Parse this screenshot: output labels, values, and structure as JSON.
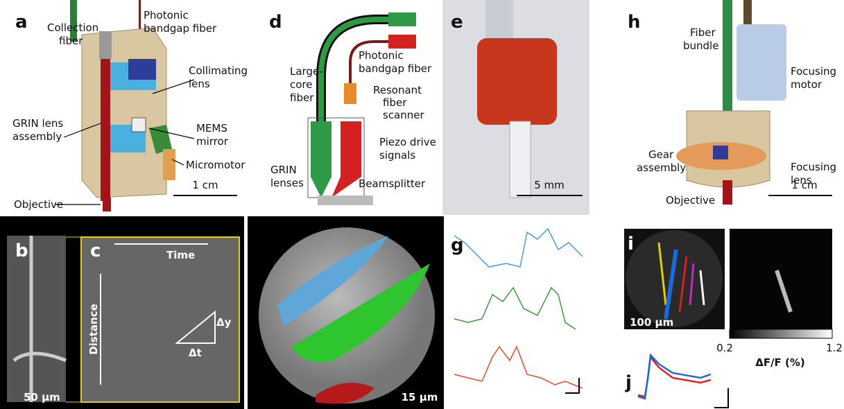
{
  "panel_a": {
    "letter": "a",
    "collection_fiber": [
      "Collection",
      "fiber"
    ],
    "photonic_fiber": [
      "Photonic",
      "bandgap fiber"
    ],
    "collimating_lens": [
      "Collimating",
      "lens"
    ],
    "grin_assembly": [
      "GRIN lens",
      "assembly"
    ],
    "mems_mirror": [
      "MEMS",
      "mirror"
    ],
    "micromotor": "Micromotor",
    "scale": "1 cm",
    "objective": "Objective"
  },
  "panel_d": {
    "letter": "d",
    "large_core_fiber": [
      "Large-",
      "core",
      "fiber"
    ],
    "photonic_fiber": [
      "Photonic",
      "bandgap fiber"
    ],
    "resonant_scanner": [
      "Resonant",
      "fiber",
      "scanner"
    ],
    "piezo": [
      "Piezo drive",
      "signals"
    ],
    "grin_lenses": [
      "GRIN",
      "lenses"
    ],
    "beamsplitter": "Beamsplitter"
  },
  "panel_e": {
    "letter": "e",
    "scale": "5 mm"
  },
  "panel_h": {
    "letter": "h",
    "fiber_bundle": [
      "Fiber",
      "bundle"
    ],
    "focusing_motor": [
      "Focusing",
      "motor"
    ],
    "gear_assembly": [
      "Gear",
      "assembly"
    ],
    "focusing_lens": [
      "Focusing",
      "lens"
    ],
    "scale": "1 cm",
    "objective": "Objective"
  },
  "panel_b": {
    "letter": "b",
    "scale": "50 µm"
  },
  "panel_c": {
    "letter": "c",
    "time": "Time",
    "distance": "Distance",
    "dy": "Δy",
    "dt": "Δt"
  },
  "panel_f": {
    "scale": "15 µm"
  },
  "panel_g": {
    "letter": "g"
  },
  "panel_i": {
    "letter": "i",
    "scale": "100 µm",
    "colorbar_min": "0.2",
    "colorbar_max": "1.2",
    "colorbar_label": "ΔF/F (%)"
  },
  "panel_j": {
    "letter": "j"
  }
}
